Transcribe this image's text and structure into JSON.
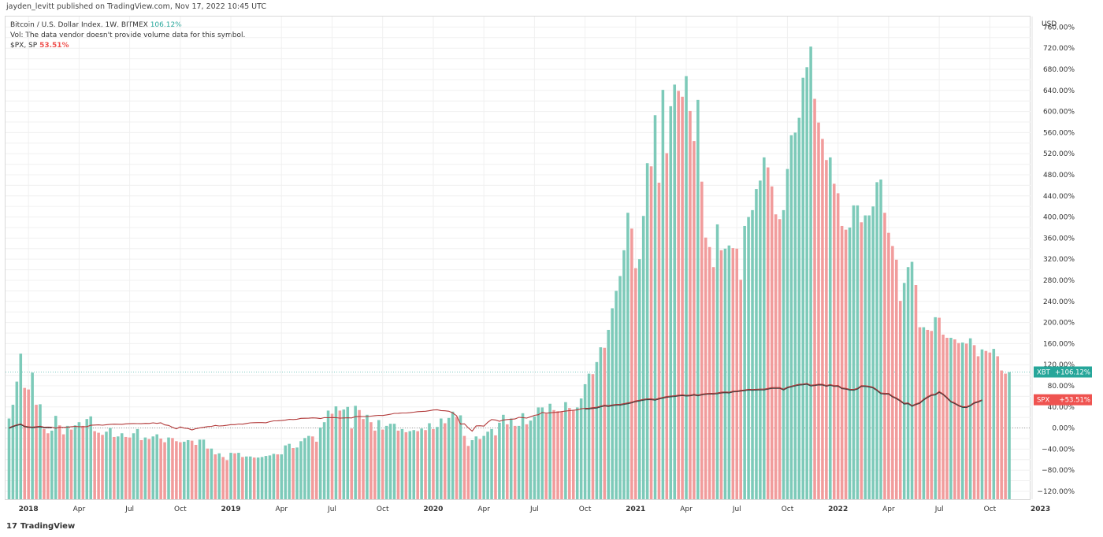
{
  "header": {
    "published": "jayden_levitt published on TradingView.com, Nov 17, 2022 10:45 UTC"
  },
  "legend": {
    "main_label": "Bitcoin / U.S. Dollar Index, 1W, BITMEX",
    "main_value": "106.12%",
    "vol_note": "Vol: The data vendor doesn't provide volume data for this symbol.",
    "overlay_label": "$PX, SP",
    "overlay_value": "53.51%"
  },
  "brand": {
    "name": "TradingView"
  },
  "colors": {
    "up": "#7dcab9",
    "down": "#f19c9c",
    "overlay": "#b23a3a",
    "main_line": "#3c3c3c",
    "grid": "#f0f0f0"
  },
  "chart_data": {
    "type": "bar",
    "currency_label": "USD",
    "ylim": [
      -135,
      780
    ],
    "yticks": [
      -120,
      -100,
      -80,
      -60,
      -40,
      -20,
      0,
      20,
      40,
      60,
      80,
      100,
      120,
      140,
      160,
      180,
      200,
      220,
      240,
      260,
      280,
      300,
      320,
      340,
      360,
      380,
      400,
      420,
      440,
      460,
      480,
      500,
      520,
      540,
      560,
      580,
      600,
      620,
      640,
      660,
      680,
      700,
      720,
      740,
      760
    ],
    "yticks_labeled": [
      -120,
      -80,
      -40,
      0,
      40,
      80,
      120,
      160,
      200,
      240,
      280,
      320,
      360,
      400,
      440,
      480,
      520,
      560,
      600,
      640,
      680,
      720,
      760
    ],
    "x_ticks": [
      {
        "label": "2018",
        "week": 5,
        "bold": true
      },
      {
        "label": "Apr",
        "week": 18
      },
      {
        "label": "Jul",
        "week": 31
      },
      {
        "label": "Oct",
        "week": 44
      },
      {
        "label": "2019",
        "week": 57,
        "bold": true
      },
      {
        "label": "Apr",
        "week": 70
      },
      {
        "label": "Jul",
        "week": 83
      },
      {
        "label": "Oct",
        "week": 96
      },
      {
        "label": "2020",
        "week": 109,
        "bold": true
      },
      {
        "label": "Apr",
        "week": 122
      },
      {
        "label": "Jul",
        "week": 135
      },
      {
        "label": "Oct",
        "week": 148
      },
      {
        "label": "2021",
        "week": 161,
        "bold": true
      },
      {
        "label": "Apr",
        "week": 174
      },
      {
        "label": "Jul",
        "week": 187
      },
      {
        "label": "Oct",
        "week": 200
      },
      {
        "label": "2022",
        "week": 213,
        "bold": true
      },
      {
        "label": "Apr",
        "week": 226
      },
      {
        "label": "Jul",
        "week": 239
      },
      {
        "label": "Oct",
        "week": 252
      },
      {
        "label": "2023",
        "week": 265,
        "bold": true
      }
    ],
    "markers": [
      {
        "symbol": "XBT",
        "text": "+106.12%",
        "value": 106.12,
        "color": "#26a69a"
      },
      {
        "symbol": "SPX",
        "text": "+53.51%",
        "value": 53.51,
        "color": "#ef5350"
      }
    ],
    "series": [
      {
        "name": "XBT",
        "kind": "bars",
        "values": [
          18,
          44,
          88,
          141,
          76,
          73,
          105,
          44,
          45,
          -2,
          -10,
          -5,
          23,
          5,
          -12,
          4,
          -3,
          5,
          11,
          4,
          17,
          22,
          -6,
          -9,
          -13,
          -7,
          0,
          -17,
          -16,
          -10,
          -17,
          -18,
          -10,
          -2,
          -23,
          -18,
          -21,
          -16,
          -12,
          -20,
          -27,
          -18,
          -19,
          -25,
          -27,
          -26,
          -23,
          -24,
          -32,
          -22,
          -22,
          -39,
          -39,
          -50,
          -48,
          -55,
          -61,
          -47,
          -48,
          -47,
          -55,
          -54,
          -54,
          -56,
          -56,
          -55,
          -53,
          -52,
          -49,
          -50,
          -50,
          -33,
          -30,
          -38,
          -37,
          -25,
          -19,
          -15,
          -16,
          -26,
          1,
          11,
          33,
          27,
          41,
          33,
          35,
          40,
          -1,
          42,
          34,
          17,
          25,
          11,
          -5,
          15,
          -3,
          4,
          8,
          8,
          -5,
          -2,
          -8,
          -6,
          -4,
          -6,
          -1,
          -4,
          9,
          -2,
          2,
          18,
          9,
          19,
          31,
          21,
          24,
          -15,
          -34,
          -23,
          -16,
          -21,
          -15,
          -7,
          -2,
          -14,
          10,
          25,
          7,
          18,
          4,
          4,
          28,
          7,
          14,
          22,
          39,
          39,
          27,
          46,
          34,
          32,
          31,
          49,
          38,
          34,
          39,
          56,
          83,
          103,
          102,
          125,
          153,
          152,
          186,
          227,
          260,
          288,
          337,
          408,
          378,
          303,
          320,
          402,
          502,
          496,
          593,
          465,
          641,
          521,
          610,
          651,
          639,
          628,
          667,
          601,
          544,
          622,
          467,
          361,
          343,
          305,
          386,
          337,
          340,
          346,
          341,
          340,
          281,
          383,
          400,
          413,
          453,
          469,
          513,
          494,
          458,
          405,
          396,
          413,
          491,
          555,
          560,
          588,
          664,
          684,
          723,
          624,
          579,
          548,
          508,
          513,
          463,
          445,
          383,
          376,
          380,
          422,
          422,
          390,
          403,
          403,
          420,
          466,
          471,
          408,
          370,
          345,
          319,
          241,
          275,
          305,
          315,
          271,
          191,
          191,
          186,
          184,
          210,
          209,
          177,
          171,
          171,
          168,
          161,
          162,
          160,
          170,
          157,
          136,
          149,
          146,
          143,
          150,
          136,
          109,
          103,
          106
        ]
      },
      {
        "name": "SPX",
        "kind": "line",
        "values": [
          0.4,
          3.5,
          6.1,
          7.7,
          3.5,
          2.3,
          1.8,
          2.5,
          3.4,
          1.6,
          1.7,
          1.6,
          -0.4,
          1.5,
          1.1,
          1.5,
          2.4,
          3,
          2.4,
          2.5,
          2.5,
          5.1,
          5.6,
          5.9,
          5.3,
          6.2,
          7,
          7.3,
          7.1,
          6.9,
          7.8,
          8.2,
          8.5,
          8.3,
          8.2,
          8.7,
          8.6,
          9.8,
          8.8,
          9.9,
          5.9,
          4.8,
          1.3,
          -1.5,
          2,
          -0.2,
          -1,
          -3.7,
          -1.3,
          0.3,
          1.3,
          2.6,
          3,
          4.9,
          3.8,
          4.2,
          5.2,
          6.3,
          6.4,
          7.6,
          7.3,
          8.6,
          9.8,
          10.1,
          10.2,
          10.2,
          10,
          12.1,
          13.5,
          13.7,
          14.1,
          14.9,
          16.4,
          16.1,
          16.7,
          18.3,
          18.4,
          18.6,
          19.2,
          18.9,
          17.9,
          19.6,
          19.5,
          19.8,
          19.7,
          18.7,
          19.1,
          19.3,
          19,
          21.5,
          21.9,
          21.8,
          21.8,
          22.5,
          23.4,
          23.9,
          23.7,
          24.8,
          26,
          27.7,
          27.8,
          28.4,
          28.4,
          29.1,
          30,
          31,
          31.3,
          31.8,
          32.8,
          34.1,
          34.5,
          33.1,
          32.6,
          31.7,
          28.6,
          23,
          7.4,
          7.8,
          0.2,
          -6.1,
          4,
          4.3,
          3.5,
          10.9,
          16.1,
          15.2,
          12.8,
          15.2,
          16.1,
          16.7,
          17.1,
          20.3,
          19.7,
          18.8,
          21.3,
          23.9,
          25.1,
          29.5,
          28.1,
          28.7,
          29.5,
          29.8,
          31.2,
          32,
          32.9,
          33.6,
          34.3,
          36.3,
          37.2,
          37.5,
          38.6,
          39.3,
          41.4,
          43.3,
          42.4,
          43.7,
          44.7,
          44.7,
          46.2,
          47.5,
          49,
          51.3,
          52.6,
          54.2,
          55.3,
          55.1,
          54.3,
          56.3,
          58,
          59.6,
          60.5,
          61.1,
          62.2,
          63,
          62.1,
          62.4,
          63.8,
          62.5,
          64.2,
          65.1,
          65.8,
          65.7,
          66.3,
          67.9,
          68.3,
          67.8,
          69.8,
          70.2,
          71.3,
          72,
          73.4,
          72.9,
          73.4,
          73.6,
          73.7,
          75,
          76.6,
          76.7,
          76.6,
          73.5,
          77.4,
          79.4,
          81.2,
          82.8,
          83.2,
          84.4,
          81.1,
          81.7,
          83.1,
          82.9,
          80.6,
          82.3,
          80.3,
          80.5,
          75.9,
          75,
          73.4,
          73.1,
          75.2,
          80.3,
          80.1,
          79.1,
          77.2,
          72.4,
          66.5,
          65.6,
          65.6,
          60.3,
          56.9,
          52.3,
          46.8,
          47.6,
          42.5,
          45.8,
          48.2,
          54.5,
          59.2,
          63.3,
          64.2,
          69.1,
          64.6,
          58,
          50.7,
          47.5,
          43.2,
          40.5,
          40.3,
          43.3,
          48.4,
          50.4,
          53.5
        ]
      }
    ]
  }
}
